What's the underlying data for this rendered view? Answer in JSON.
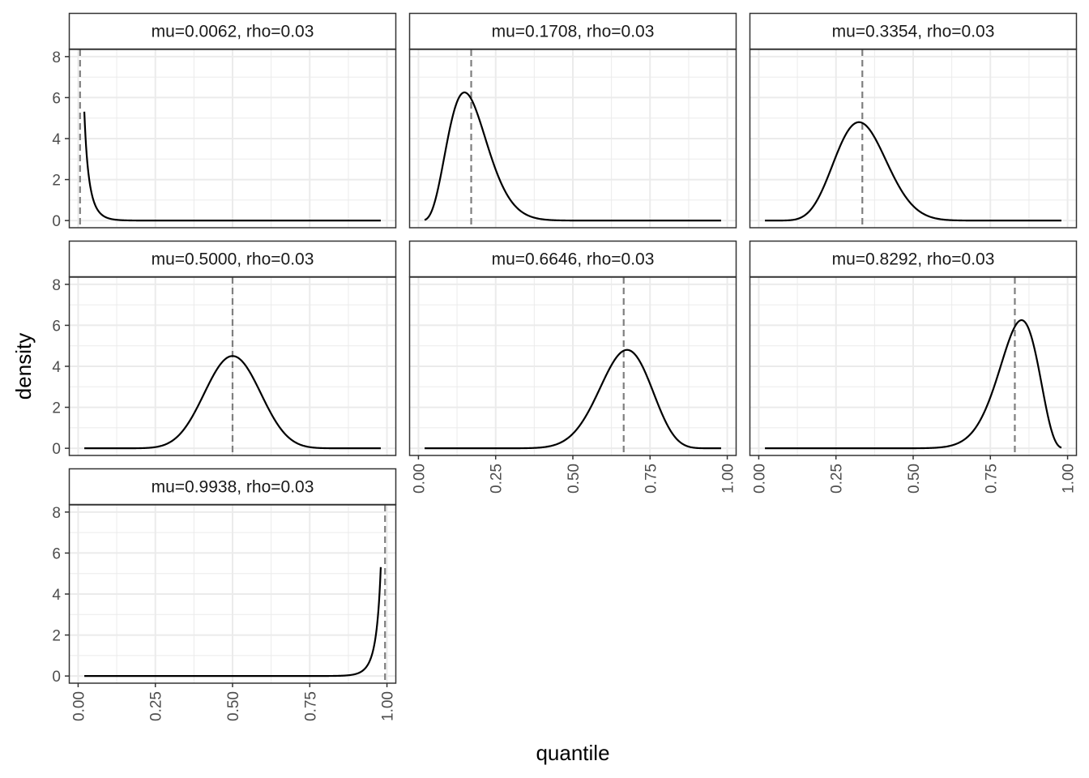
{
  "chart_data": {
    "type": "line",
    "layout": "facet-wrap",
    "ncol": 3,
    "xlabel": "quantile",
    "ylabel": "density",
    "xlim": [
      -0.03,
      1.03
    ],
    "ylim": [
      -0.35,
      8.35
    ],
    "x_ticks": [
      0,
      0.25,
      0.5,
      0.75,
      1
    ],
    "x_tick_labels": [
      "0.00",
      "0.25",
      "0.50",
      "0.75",
      "1.00"
    ],
    "y_ticks": [
      0,
      2,
      4,
      6,
      8
    ],
    "y_tick_labels": [
      "0",
      "2",
      "4",
      "6",
      "8"
    ],
    "x_range": [
      0.02,
      0.98
    ],
    "colors": {
      "line": "#000000",
      "reference": "#7f7f7f",
      "grid": "#ebebeb",
      "strip_bg": "#ffffff",
      "border": "#333333"
    },
    "facets": [
      {
        "label": "mu=0.0062, rho=0.03",
        "mu": 0.0062,
        "rho": 0.03
      },
      {
        "label": "mu=0.1708, rho=0.03",
        "mu": 0.1708,
        "rho": 0.03
      },
      {
        "label": "mu=0.3354, rho=0.03",
        "mu": 0.3354,
        "rho": 0.03
      },
      {
        "label": "mu=0.5000, rho=0.03",
        "mu": 0.5,
        "rho": 0.03
      },
      {
        "label": "mu=0.6646, rho=0.03",
        "mu": 0.6646,
        "rho": 0.03
      },
      {
        "label": "mu=0.8292, rho=0.03",
        "mu": 0.8292,
        "rho": 0.03
      },
      {
        "label": "mu=0.9938, rho=0.03",
        "mu": 0.9938,
        "rho": 0.03
      }
    ]
  }
}
